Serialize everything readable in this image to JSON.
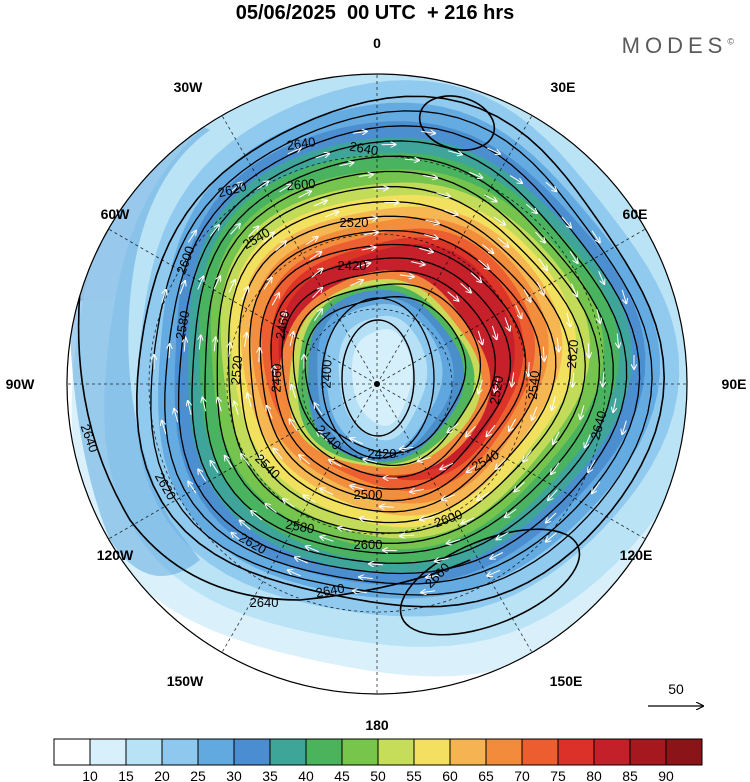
{
  "title": "05/06/2025  00 UTC  + 216 hrs",
  "brand": "MODES",
  "brand_mark": "©",
  "longitude_labels": [
    "0",
    "30E",
    "60E",
    "90E",
    "120E",
    "150E",
    "180",
    "150W",
    "120W",
    "90W",
    "60W",
    "30W"
  ],
  "contour_labels": [
    "2400",
    "2420",
    "2440",
    "2460",
    "2500",
    "2520",
    "2540",
    "2560",
    "2580",
    "2600",
    "2620",
    "2640",
    "2660"
  ],
  "vector_reference": {
    "label": "50"
  },
  "colorbar": {
    "ticks": [
      "10",
      "15",
      "20",
      "25",
      "30",
      "35",
      "40",
      "45",
      "50",
      "55",
      "60",
      "65",
      "70",
      "75",
      "80",
      "85",
      "90"
    ],
    "colors": [
      "#ffffff",
      "#d8f0fb",
      "#b8e2f6",
      "#8ec8ee",
      "#62a9e0",
      "#4a8dd0",
      "#3ea698",
      "#4ab35c",
      "#78c54c",
      "#c6dd5a",
      "#f4e060",
      "#f5b451",
      "#f28b3c",
      "#ec5d30",
      "#dc3128",
      "#c4202a",
      "#a5191e",
      "#8a1418"
    ]
  },
  "colors": {
    "wind_shading": [
      "#ffffff",
      "#d8f0fb",
      "#b8e2f6",
      "#8ec8ee",
      "#62a9e0",
      "#4a8dd0",
      "#3ea698",
      "#4ab35c",
      "#78c54c",
      "#c6dd5a",
      "#f4e060",
      "#f5b451",
      "#f28b3c",
      "#ec5d30",
      "#dc3128",
      "#c4202a"
    ],
    "land": "#dcdcdc",
    "contour": "#000000",
    "vectors": "#ffffff"
  }
}
